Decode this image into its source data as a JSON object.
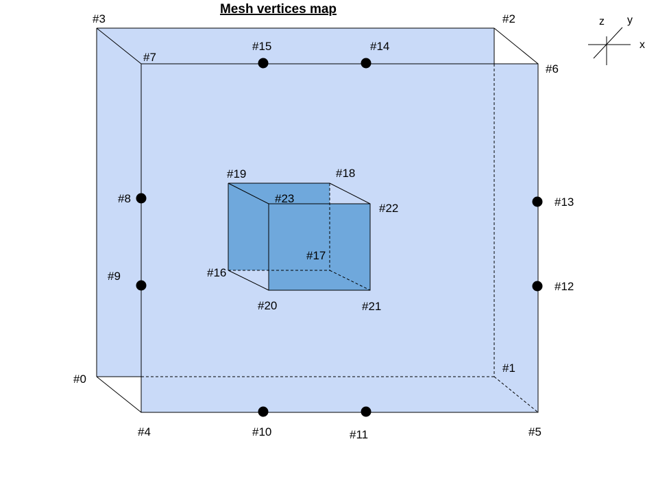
{
  "title": "Mesh vertices map",
  "colors": {
    "outer_fill": "#c9daf8",
    "inner_fill": "#6fa8dc",
    "stroke": "#000000",
    "node": "#000000"
  },
  "axes": {
    "z": "z",
    "y": "y",
    "x": "x"
  },
  "vertices": [
    "#0",
    "#1",
    "#2",
    "#3",
    "#4",
    "#5",
    "#6",
    "#7",
    "#8",
    "#9",
    "#10",
    "#11",
    "#12",
    "#13",
    "#14",
    "#15",
    "#16",
    "#17",
    "#18",
    "#19",
    "#20",
    "#21",
    "#22",
    "#23"
  ]
}
